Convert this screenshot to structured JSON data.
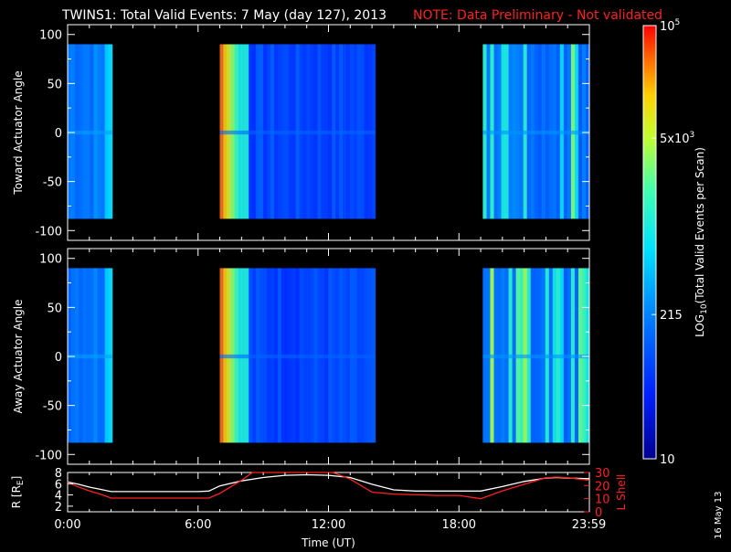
{
  "header": {
    "title": "TWINS1: Total Valid Events:  7 May (day 127), 2013",
    "note": "NOTE: Data Preliminary - Not validated"
  },
  "colors": {
    "note": "#ff2020",
    "background": "#000000",
    "axes": "#ffffff",
    "lshell_line": "#ff2020",
    "r_line": "#ffffff"
  },
  "chart_data": [
    {
      "type": "heatmap",
      "panel": "toward",
      "ylabel": "Toward Actuator Angle",
      "ylim": [
        -110,
        110
      ],
      "yticks": [
        "100",
        "50",
        "0",
        "-50",
        "-100"
      ],
      "x_range_hours": [
        0,
        24
      ],
      "data_y_range": [
        -88,
        90
      ],
      "segments": [
        {
          "start_h": 0.0,
          "end_h": 2.05,
          "level": 0.32
        },
        {
          "start_h": 7.0,
          "end_h": 14.15,
          "level": 0.22
        },
        {
          "start_h": 19.1,
          "end_h": 24.0,
          "level": 0.3
        }
      ],
      "grid": false
    },
    {
      "type": "heatmap",
      "panel": "away",
      "ylabel": "Away Actuator Angle",
      "ylim": [
        -110,
        110
      ],
      "yticks": [
        "100",
        "50",
        "0",
        "-50",
        "-100"
      ],
      "x_range_hours": [
        0,
        24
      ],
      "data_y_range": [
        -88,
        90
      ],
      "segments": [
        {
          "start_h": 0.0,
          "end_h": 2.05,
          "level": 0.32
        },
        {
          "start_h": 7.0,
          "end_h": 14.15,
          "level": 0.22
        },
        {
          "start_h": 19.1,
          "end_h": 24.0,
          "level": 0.3
        }
      ],
      "grid": false
    },
    {
      "type": "line",
      "panel": "orbit",
      "xlabel": "Time (UT)",
      "xticks": [
        "0:00",
        "6:00",
        "12:00",
        "18:00",
        "23:59"
      ],
      "xtick_hours": [
        0,
        6,
        12,
        18,
        23.98
      ],
      "ylabel_left": "R [R",
      "ylabel_left_sub": "E",
      "ylabel_left_end": "]",
      "ylabel_right": "L Shell",
      "left_ylim": [
        1,
        8
      ],
      "left_yticks": [
        "8",
        "6",
        "4",
        "2"
      ],
      "right_ylim": [
        0,
        30
      ],
      "right_yticks": [
        "30",
        "20",
        "10",
        "0"
      ],
      "series": [
        {
          "name": "R",
          "axis": "left",
          "x": [
            0,
            0.5,
            1,
            1.5,
            2,
            3,
            4,
            5,
            6,
            6.5,
            7,
            8,
            9,
            10,
            11,
            12,
            13,
            14,
            15,
            16,
            17,
            18,
            19,
            20,
            21,
            22,
            22.5,
            23,
            24
          ],
          "y": [
            6.3,
            5.9,
            5.4,
            5.0,
            4.6,
            4.6,
            4.6,
            4.6,
            4.6,
            4.7,
            5.6,
            6.5,
            7.1,
            7.5,
            7.6,
            7.5,
            7.1,
            5.9,
            4.9,
            4.7,
            4.7,
            4.7,
            4.7,
            5.5,
            6.4,
            7.0,
            7.1,
            7.0,
            6.9
          ]
        },
        {
          "name": "L Shell",
          "axis": "right",
          "x": [
            0,
            0.5,
            1,
            1.5,
            2,
            3,
            4,
            5,
            6,
            6.5,
            7,
            8,
            8.5,
            12.2,
            13,
            14,
            15,
            16,
            17,
            18,
            19,
            20,
            21,
            22,
            22.5,
            23,
            24
          ],
          "y": [
            22.5,
            19,
            16,
            13.5,
            10.5,
            10.5,
            10.5,
            10.5,
            10.5,
            10.5,
            14,
            24,
            30,
            30,
            25,
            15,
            13.5,
            13,
            12.5,
            12.5,
            10,
            16,
            21,
            26,
            26.5,
            26,
            24
          ]
        }
      ],
      "grid": false
    }
  ],
  "colorbar": {
    "label": "LOG",
    "label_sub": "10",
    "label_rest": "(Total Valid Events per Scan)",
    "ticks": [
      {
        "base": "10",
        "exp": "5",
        "pos": 1.0
      },
      {
        "base": "5x10",
        "exp": "3",
        "pos": 0.74
      },
      {
        "base": "215",
        "exp": "",
        "pos": 0.333
      },
      {
        "base": "10",
        "exp": "",
        "pos": 0.0
      }
    ]
  },
  "footer": {
    "date_stamp": "16 May 13"
  }
}
